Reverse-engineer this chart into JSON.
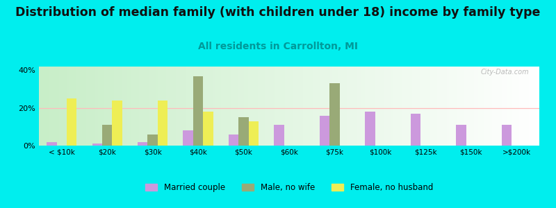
{
  "title": "Distribution of median family (with children under 18) income by family type",
  "subtitle": "All residents in Carrollton, MI",
  "categories": [
    "< $10k",
    "$20k",
    "$30k",
    "$40k",
    "$50k",
    "$60k",
    "$75k",
    "$100k",
    "$125k",
    "$150k",
    ">$200k"
  ],
  "series": {
    "Married couple": [
      2,
      1,
      2,
      8,
      6,
      11,
      16,
      18,
      17,
      11,
      11
    ],
    "Male, no wife": [
      0,
      11,
      6,
      37,
      15,
      0,
      33,
      0,
      0,
      0,
      0
    ],
    "Female, no husband": [
      25,
      24,
      24,
      18,
      13,
      0,
      0,
      0,
      0,
      0,
      0
    ]
  },
  "colors": {
    "Married couple": "#cc99dd",
    "Male, no wife": "#99aa77",
    "Female, no husband": "#eeee55"
  },
  "ylim": [
    0,
    42
  ],
  "yticks": [
    0,
    20,
    40
  ],
  "ytick_labels": [
    "0%",
    "20%",
    "40%"
  ],
  "background_color": "#00eeee",
  "plot_bg_left": "#c8eec8",
  "plot_bg_right": "#ffffff",
  "watermark": "City-Data.com",
  "title_fontsize": 12.5,
  "subtitle_fontsize": 10,
  "subtitle_color": "#009999",
  "bar_width": 0.22
}
